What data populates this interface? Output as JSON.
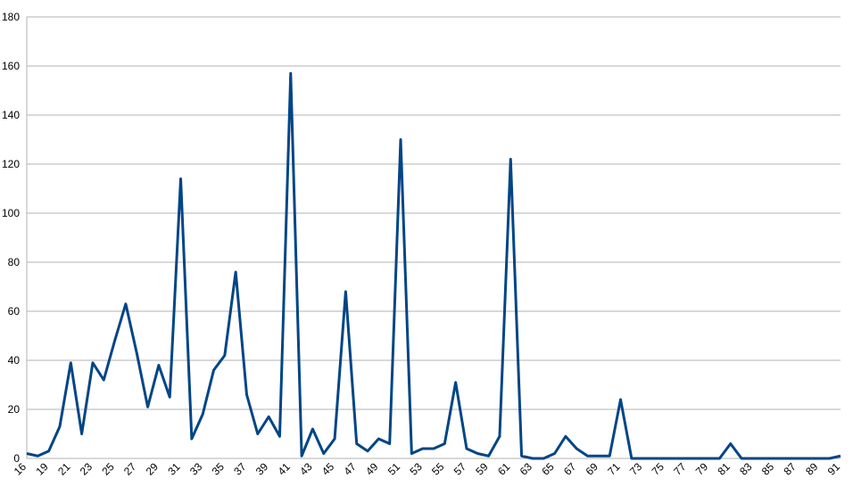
{
  "chart_data": {
    "type": "line",
    "categories": [
      "16",
      null,
      "19",
      null,
      "21",
      null,
      "23",
      null,
      "25",
      null,
      "27",
      null,
      "29",
      null,
      "31",
      null,
      "33",
      null,
      "35",
      null,
      "37",
      null,
      "39",
      null,
      "41",
      null,
      "43",
      null,
      "45",
      null,
      "47",
      null,
      "49",
      null,
      "51",
      null,
      "53",
      null,
      "55",
      null,
      "57",
      null,
      "59",
      null,
      "61",
      null,
      "63",
      null,
      "65",
      null,
      "67",
      null,
      "69",
      null,
      "71",
      null,
      "73",
      null,
      "75",
      null,
      "77",
      null,
      "79",
      null,
      "81",
      null,
      "83",
      null,
      "85",
      null,
      "87",
      null,
      "89",
      null,
      "91"
    ],
    "series": [
      {
        "color": "#004586",
        "values": [
          2,
          1,
          3,
          13,
          39,
          10,
          39,
          32,
          48,
          63,
          43,
          21,
          38,
          25,
          114,
          8,
          18,
          36,
          42,
          76,
          26,
          10,
          17,
          9,
          157,
          1,
          12,
          2,
          8,
          68,
          6,
          3,
          8,
          6,
          130,
          2,
          4,
          4,
          6,
          31,
          4,
          2,
          1,
          9,
          122,
          1,
          0,
          0,
          2,
          9,
          4,
          1,
          1,
          1,
          24,
          0,
          0,
          0,
          0,
          0,
          0,
          0,
          0,
          0,
          6,
          0,
          0,
          0,
          0,
          0,
          0,
          0,
          0,
          0,
          1
        ]
      }
    ],
    "ylim": [
      0,
      180
    ],
    "yticks": [
      0,
      20,
      40,
      60,
      80,
      100,
      120,
      140,
      160,
      180
    ],
    "grid": true
  }
}
